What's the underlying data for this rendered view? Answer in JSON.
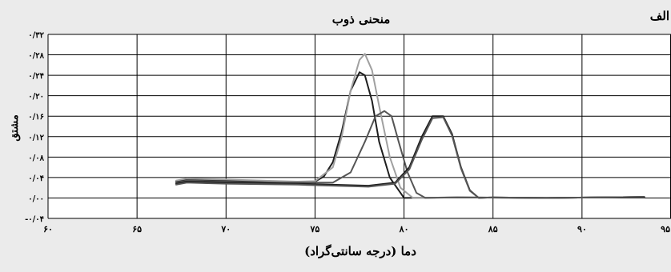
{
  "panel_label": "الف",
  "chart_data": {
    "type": "line",
    "title": "منحنی ذوب",
    "xlabel": "دما (درجه سانتی‌گراد)",
    "ylabel": "مشتق",
    "xlim": [
      60,
      95
    ],
    "ylim": [
      -0.04,
      0.32
    ],
    "grid": true,
    "x_ticks": [
      60,
      65,
      70,
      75,
      80,
      85,
      90,
      95
    ],
    "x_tick_labels": [
      "۶۰",
      "۶۵",
      "۷۰",
      "۷۵",
      "۸۰",
      "۸۵",
      "۹۰",
      "۹۵"
    ],
    "y_ticks": [
      -0.04,
      0.0,
      0.04,
      0.08,
      0.12,
      0.16,
      0.2,
      0.24,
      0.28,
      0.32
    ],
    "y_tick_labels": [
      "-۰/۰۴",
      "۰/۰۰",
      "۰/۰۴",
      "۰/۰۸",
      "۰/۱۲",
      "۰/۱۶",
      "۰/۲۰",
      "۰/۲۴",
      "۰/۲۸",
      "۰/۳۲"
    ],
    "colors": {
      "background": "#ebebeb",
      "plot_background": "#ffffff",
      "grid": "#000000",
      "curve_dark": "#1e1e1e",
      "curve_gray": "#555555",
      "curve_light": "#a0a0a0"
    },
    "series": [
      {
        "color": "#1e1e1e",
        "x": [
          67.2,
          67.8,
          70,
          72,
          74,
          75,
          75.5,
          76,
          76.5,
          77,
          77.5,
          77.8,
          78.2,
          78.6,
          79.2,
          80,
          83,
          88,
          93.5
        ],
        "y": [
          0.032,
          0.036,
          0.034,
          0.032,
          0.03,
          0.032,
          0.042,
          0.07,
          0.13,
          0.21,
          0.246,
          0.24,
          0.19,
          0.11,
          0.04,
          0.0,
          0.001,
          0.0,
          0.002
        ]
      },
      {
        "color": "#a0a0a0",
        "x": [
          67.2,
          67.8,
          70,
          72,
          74,
          75,
          76,
          76.5,
          77,
          77.5,
          77.8,
          78.2,
          78.6,
          79.2,
          79.8,
          80.5,
          83,
          88,
          93.5
        ],
        "y": [
          0.034,
          0.038,
          0.036,
          0.034,
          0.032,
          0.033,
          0.06,
          0.12,
          0.21,
          0.27,
          0.282,
          0.25,
          0.18,
          0.08,
          0.02,
          0.0,
          0.001,
          0.0,
          0.002
        ]
      },
      {
        "color": "#555555",
        "x": [
          67.2,
          67.8,
          70,
          72,
          74,
          76,
          77,
          77.8,
          78.4,
          78.9,
          79.3,
          79.7,
          80.2,
          80.7,
          81.2,
          83,
          88,
          93.5
        ],
        "y": [
          0.03,
          0.034,
          0.032,
          0.03,
          0.03,
          0.03,
          0.05,
          0.11,
          0.16,
          0.17,
          0.16,
          0.11,
          0.05,
          0.01,
          0.0,
          0.001,
          0.0,
          0.002
        ]
      },
      {
        "color": "#1e1e1e",
        "x": [
          67.2,
          67.8,
          70,
          74,
          78,
          79.5,
          80.3,
          81,
          81.6,
          82.2,
          82.7,
          83.2,
          83.7,
          84.2,
          85,
          88,
          93.5
        ],
        "y": [
          0.028,
          0.032,
          0.03,
          0.028,
          0.024,
          0.03,
          0.06,
          0.12,
          0.16,
          0.16,
          0.125,
          0.06,
          0.015,
          0.0,
          0.001,
          0.0,
          0.002
        ]
      },
      {
        "color": "#555555",
        "x": [
          67.2,
          67.8,
          70,
          74,
          78,
          79.5,
          80.3,
          81,
          81.6,
          82.2,
          82.7,
          83.2,
          83.7,
          84.2,
          85,
          88,
          93.5
        ],
        "y": [
          0.026,
          0.03,
          0.028,
          0.026,
          0.022,
          0.028,
          0.056,
          0.114,
          0.156,
          0.158,
          0.122,
          0.058,
          0.014,
          0.0,
          0.001,
          0.0,
          0.002
        ]
      }
    ]
  }
}
